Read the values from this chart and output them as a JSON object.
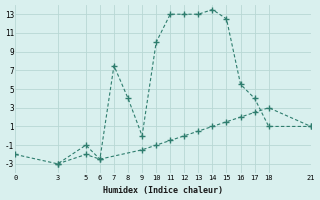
{
  "xlabel": "Humidex (Indice chaleur)",
  "x_data1": [
    0,
    3,
    5,
    6,
    7,
    8,
    9,
    10,
    11,
    12,
    13,
    14,
    15,
    16,
    17,
    18,
    21
  ],
  "y_data1": [
    -2,
    -3,
    -1,
    -2.5,
    7.5,
    4,
    0,
    10,
    13,
    13,
    13,
    13.5,
    12.5,
    5.5,
    4,
    1,
    1
  ],
  "x_data2": [
    3,
    5,
    6,
    9,
    10,
    11,
    12,
    13,
    14,
    15,
    16,
    17,
    18,
    21
  ],
  "y_data2": [
    -3,
    -2,
    -2.5,
    -1.5,
    -1,
    -0.5,
    0,
    0.5,
    1,
    1.5,
    2,
    2.5,
    3,
    1
  ],
  "line_color": "#2e7d6e",
  "marker": "+",
  "bg_color": "#d9f0ee",
  "grid_color": "#b8d8d4",
  "ylim": [
    -4,
    14
  ],
  "xlim": [
    0,
    21
  ],
  "yticks": [
    -3,
    -1,
    1,
    3,
    5,
    7,
    9,
    11,
    13
  ],
  "xticks": [
    0,
    3,
    5,
    6,
    7,
    8,
    9,
    10,
    11,
    12,
    13,
    14,
    15,
    16,
    17,
    18,
    21
  ]
}
